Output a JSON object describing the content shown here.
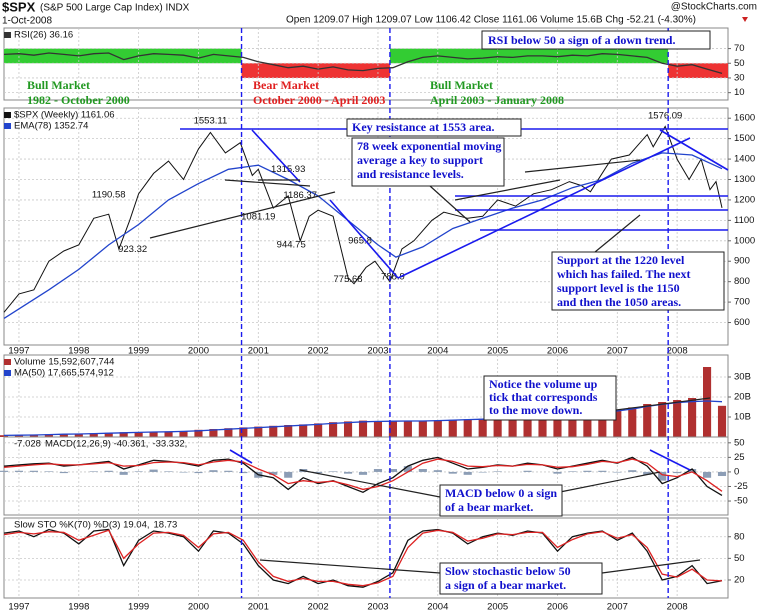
{
  "header": {
    "symbol": "$SPX",
    "name": "(S&P 500 Large Cap Index) INDX",
    "date": "1-Oct-2008",
    "quote": "Open 1209.07 High 1209.07 Low 1106.42 Close 1161.06 Volume 15.6B Chg -52.21 (-4.30%)",
    "copyright": "@StockCharts.com"
  },
  "annotations": {
    "bull1": [
      "Bull Market",
      "1982 - October 2000"
    ],
    "bear": [
      "Bear Market",
      "October 2000 - April 2003"
    ],
    "bull2": [
      "Bull Market",
      "April 2003 - January 2008"
    ],
    "rsi": [
      "RSI below 50 a sign of a down trend."
    ],
    "resistance": [
      "Key resistance at 1553 area."
    ],
    "ema": [
      "78 week exponential moving",
      "average a key to support",
      "and resistance levels."
    ],
    "support": [
      "Support at the 1220 level",
      "which has failed. The next",
      "support level is the 1150",
      "and then the 1050 areas."
    ],
    "volume": [
      "Notice the volume up",
      "tick that corresponds",
      "to the move down."
    ],
    "macd": [
      "MACD below 0 a sign",
      "of a bear market."
    ],
    "sto": [
      "Slow stochastic below 50",
      "a sign of a bear market."
    ]
  },
  "chart_data": [
    {
      "type": "line",
      "xlim": [
        1996.75,
        2008.85
      ],
      "ylim": [
        0,
        98
      ],
      "yticks": [
        70,
        50,
        30,
        10
      ],
      "grid": true,
      "band_colors": [
        "#33cc33",
        "#ee3333"
      ],
      "x": [
        1996.75,
        1997,
        1997.25,
        1997.5,
        1997.75,
        1998,
        1998.25,
        1998.5,
        1998.75,
        1999,
        1999.25,
        1999.5,
        1999.75,
        2000,
        2000.25,
        2000.5,
        2000.75,
        2001,
        2001.25,
        2001.5,
        2001.75,
        2002,
        2002.25,
        2002.5,
        2002.75,
        2003,
        2003.25,
        2003.5,
        2003.75,
        2004,
        2004.25,
        2004.5,
        2004.75,
        2005,
        2005.25,
        2005.5,
        2005.75,
        2006,
        2006.25,
        2006.5,
        2006.75,
        2007,
        2007.25,
        2007.5,
        2007.75,
        2008,
        2008.25,
        2008.5,
        2008.75
      ],
      "series": [
        {
          "name": "RSI(26) 36.16",
          "color": "#333333",
          "values": [
            62,
            63,
            61,
            64,
            62,
            60,
            63,
            64,
            55,
            60,
            63,
            62,
            61,
            57,
            62,
            60,
            58,
            52,
            48,
            44,
            46,
            42,
            45,
            41,
            40,
            43,
            44,
            52,
            58,
            60,
            58,
            56,
            57,
            59,
            58,
            60,
            60,
            59,
            61,
            60,
            63,
            62,
            60,
            58,
            50,
            46,
            48,
            42,
            36.16
          ]
        }
      ]
    },
    {
      "type": "line",
      "xlim": [
        1996.75,
        2008.85
      ],
      "ylim": [
        490,
        1650
      ],
      "yticks": [
        1600,
        1500,
        1400,
        1300,
        1200,
        1100,
        1000,
        900,
        800,
        700,
        600
      ],
      "xticks": [
        1997,
        1998,
        1999,
        2000,
        2001,
        2002,
        2003,
        2004,
        2005,
        2006,
        2007,
        2008
      ],
      "grid": true,
      "phase_dividers": [
        2000.72,
        2003.2,
        2007.85
      ],
      "price_labels": [
        {
          "x": 2000.2,
          "value": 1553.11
        },
        {
          "x": 2007.8,
          "value": 1576.09
        },
        {
          "x": 1998.5,
          "value": 1190.58
        },
        {
          "x": 1998.9,
          "value": 923.32
        },
        {
          "x": 2001.5,
          "value": 1315.93
        },
        {
          "x": 2001.7,
          "value": 1186.37
        },
        {
          "x": 2001.0,
          "value": 1081.19
        },
        {
          "x": 2001.55,
          "value": 944.75
        },
        {
          "x": 2002.7,
          "value": 965.8
        },
        {
          "x": 2002.5,
          "value": 775.68
        },
        {
          "x": 2003.25,
          "value": 788.9
        }
      ],
      "series": [
        {
          "name": "$SPX (Weekly) 1161.06",
          "color": "#111111",
          "x": [
            1996.75,
            1997.0,
            1997.25,
            1997.5,
            1997.75,
            1998.0,
            1998.25,
            1998.5,
            1998.67,
            1998.85,
            1999.0,
            1999.25,
            1999.5,
            1999.75,
            2000.0,
            2000.2,
            2000.45,
            2000.7,
            2000.9,
            2001.0,
            2001.25,
            2001.5,
            2001.7,
            2001.85,
            2002.0,
            2002.25,
            2002.5,
            2002.6,
            2002.8,
            2002.95,
            2003.2,
            2003.4,
            2003.6,
            2003.9,
            2004.1,
            2004.5,
            2004.75,
            2005.0,
            2005.3,
            2005.6,
            2005.9,
            2006.2,
            2006.4,
            2006.55,
            2006.9,
            2007.2,
            2007.5,
            2007.6,
            2007.8,
            2008.0,
            2008.2,
            2008.4,
            2008.55,
            2008.65,
            2008.75
          ],
          "values": [
            650,
            740,
            760,
            900,
            950,
            980,
            1110,
            1130,
            960,
            1100,
            1230,
            1330,
            1390,
            1300,
            1450,
            1530,
            1430,
            1480,
            1320,
            1350,
            1160,
            1220,
            1000,
            1120,
            1150,
            1120,
            820,
            790,
            870,
            900,
            800,
            960,
            1000,
            1100,
            1140,
            1110,
            1120,
            1200,
            1170,
            1230,
            1250,
            1290,
            1270,
            1240,
            1400,
            1420,
            1520,
            1460,
            1560,
            1400,
            1300,
            1400,
            1250,
            1290,
            1161.06
          ]
        },
        {
          "name": "EMA(78) 1352.74",
          "color": "#2244cc",
          "x": [
            1996.75,
            1997.5,
            1998,
            1998.5,
            1999,
            1999.5,
            2000,
            2000.5,
            2001,
            2001.5,
            2002,
            2002.5,
            2003,
            2003.3,
            2003.75,
            2004.25,
            2004.75,
            2005.25,
            2005.75,
            2006.25,
            2006.75,
            2007.25,
            2007.75,
            2008.25,
            2008.75
          ],
          "values": [
            620,
            760,
            860,
            980,
            1080,
            1200,
            1280,
            1350,
            1370,
            1300,
            1220,
            1100,
            980,
            920,
            970,
            1060,
            1110,
            1160,
            1200,
            1260,
            1300,
            1380,
            1430,
            1420,
            1352.74
          ]
        }
      ]
    },
    {
      "type": "bar",
      "xlim": [
        1996.75,
        2008.85
      ],
      "ylim": [
        0,
        41
      ],
      "yticks": [
        {
          "value": 30,
          "label": "30B"
        },
        {
          "value": 20,
          "label": "20B"
        },
        {
          "value": 10,
          "label": "10B"
        }
      ],
      "grid": true,
      "x": [
        1996.75,
        1997,
        1997.25,
        1997.5,
        1997.75,
        1998,
        1998.25,
        1998.5,
        1998.75,
        1999,
        1999.25,
        1999.5,
        1999.75,
        2000,
        2000.25,
        2000.5,
        2000.75,
        2001,
        2001.25,
        2001.5,
        2001.75,
        2002,
        2002.25,
        2002.5,
        2002.75,
        2003,
        2003.25,
        2003.5,
        2003.75,
        2004,
        2004.25,
        2004.5,
        2004.75,
        2005,
        2005.25,
        2005.5,
        2005.75,
        2006,
        2006.25,
        2006.5,
        2006.75,
        2007,
        2007.25,
        2007.5,
        2007.75,
        2008,
        2008.25,
        2008.5,
        2008.75
      ],
      "series": [
        {
          "name": "Volume 15,592,607,744",
          "color": "#b03030",
          "type": "bar",
          "values": [
            0.9,
            1.0,
            1.2,
            1.4,
            1.5,
            1.7,
            1.9,
            2.1,
            2.4,
            2.5,
            2.6,
            2.8,
            3.0,
            3.6,
            4.0,
            4.4,
            4.8,
            5.2,
            5.6,
            6.0,
            6.3,
            6.8,
            7.4,
            7.8,
            8.2,
            8.0,
            7.8,
            8.2,
            8.0,
            8.4,
            8.6,
            8.9,
            9.1,
            9.4,
            9.6,
            9.8,
            10.2,
            10.6,
            11.0,
            11.8,
            12.5,
            13.6,
            14.8,
            16.5,
            17.5,
            18.5,
            19.5,
            35,
            15.59
          ]
        },
        {
          "name": "MA(50) 17,665,574,912",
          "color": "#2244cc",
          "type": "line",
          "values": [
            0.8,
            0.9,
            1.0,
            1.2,
            1.4,
            1.5,
            1.7,
            1.9,
            2.1,
            2.3,
            2.5,
            2.6,
            2.8,
            3.1,
            3.5,
            3.9,
            4.3,
            4.7,
            5.1,
            5.5,
            5.9,
            6.3,
            6.8,
            7.2,
            7.6,
            7.8,
            7.9,
            8.0,
            8.0,
            8.2,
            8.4,
            8.7,
            8.9,
            9.2,
            9.4,
            9.6,
            9.9,
            10.3,
            10.7,
            11.3,
            12.0,
            13.0,
            14.0,
            15.3,
            16.3,
            17.2,
            17.7,
            18,
            17.67
          ]
        }
      ]
    },
    {
      "type": "line",
      "xlim": [
        1996.75,
        2008.85
      ],
      "ylim": [
        -74,
        60
      ],
      "yticks": [
        50,
        25,
        0,
        -25,
        -50
      ],
      "grid": true,
      "x": [
        1996.75,
        1997,
        1997.25,
        1997.5,
        1997.75,
        1998,
        1998.25,
        1998.5,
        1998.75,
        1999,
        1999.25,
        1999.5,
        1999.75,
        2000,
        2000.25,
        2000.5,
        2000.75,
        2001,
        2001.25,
        2001.5,
        2001.75,
        2002,
        2002.25,
        2002.5,
        2002.75,
        2003,
        2003.25,
        2003.5,
        2003.75,
        2004,
        2004.25,
        2004.5,
        2004.75,
        2005,
        2005.25,
        2005.5,
        2005.75,
        2006,
        2006.25,
        2006.5,
        2006.75,
        2007,
        2007.25,
        2007.5,
        2007.75,
        2008,
        2008.25,
        2008.5,
        2008.75
      ],
      "series": [
        {
          "name": "-7.028",
          "color": "#8c9db5",
          "type": "bar",
          "values": [
            2,
            2,
            2,
            1,
            -2,
            0,
            1,
            2,
            -5,
            1,
            4,
            1,
            -1,
            -2,
            3,
            2,
            -2,
            -10,
            -5,
            -10,
            5,
            -2,
            1,
            -3,
            -5,
            5,
            5,
            10,
            5,
            3,
            -3,
            -5,
            -1,
            1,
            0,
            2,
            0,
            -3,
            1,
            2,
            2,
            -1,
            3,
            -5,
            -15,
            -2,
            5,
            -10,
            -7.028
          ]
        },
        {
          "name": "MACD(12,26,9) -40.361,",
          "color": "#111111",
          "values": [
            10,
            12,
            14,
            15,
            10,
            12,
            15,
            18,
            5,
            12,
            20,
            18,
            15,
            10,
            20,
            22,
            15,
            -5,
            -10,
            -30,
            -10,
            -20,
            -15,
            -25,
            -35,
            -20,
            -10,
            10,
            20,
            25,
            15,
            5,
            8,
            12,
            10,
            15,
            12,
            5,
            10,
            15,
            20,
            15,
            25,
            10,
            -20,
            -10,
            5,
            -25,
            -40.361
          ]
        },
        {
          "name": "-33.332,",
          "color": "#dd2222",
          "values": [
            8,
            10,
            12,
            14,
            12,
            12,
            14,
            16,
            10,
            11,
            16,
            17,
            16,
            12,
            17,
            20,
            17,
            5,
            -5,
            -20,
            -15,
            -18,
            -16,
            -22,
            -30,
            -25,
            -15,
            0,
            15,
            22,
            18,
            10,
            9,
            11,
            10,
            13,
            12,
            8,
            9,
            13,
            18,
            16,
            22,
            15,
            -5,
            -8,
            0,
            -15,
            -33.332
          ]
        }
      ]
    },
    {
      "type": "line",
      "xlim": [
        1996.75,
        2008.85
      ],
      "ylim": [
        -5,
        106
      ],
      "yticks": [
        80,
        50,
        20
      ],
      "xticks": [
        1997,
        1998,
        1999,
        2000,
        2001,
        2002,
        2003,
        2004,
        2005,
        2006,
        2007,
        2008
      ],
      "grid": true,
      "x": [
        1996.75,
        1997,
        1997.25,
        1997.5,
        1997.75,
        1998,
        1998.25,
        1998.5,
        1998.75,
        1999,
        1999.25,
        1999.5,
        1999.75,
        2000,
        2000.25,
        2000.5,
        2000.75,
        2001,
        2001.25,
        2001.5,
        2001.75,
        2002,
        2002.25,
        2002.5,
        2002.75,
        2003,
        2003.25,
        2003.5,
        2003.75,
        2004,
        2004.25,
        2004.5,
        2004.75,
        2005,
        2005.25,
        2005.5,
        2005.75,
        2006,
        2006.25,
        2006.5,
        2006.75,
        2007,
        2007.25,
        2007.5,
        2007.75,
        2008,
        2008.25,
        2008.5,
        2008.75
      ],
      "series": [
        {
          "name": "Slow STO %K(70) %D(3) 19.04,",
          "color": "#111111",
          "values": [
            85,
            88,
            80,
            90,
            85,
            70,
            88,
            90,
            40,
            75,
            88,
            85,
            80,
            60,
            88,
            85,
            70,
            40,
            20,
            15,
            25,
            15,
            20,
            12,
            10,
            18,
            30,
            75,
            88,
            90,
            85,
            70,
            80,
            85,
            82,
            88,
            85,
            60,
            80,
            85,
            88,
            75,
            85,
            60,
            20,
            25,
            40,
            15,
            19.04
          ]
        },
        {
          "name": "18.73",
          "color": "#dd2222",
          "values": [
            83,
            86,
            84,
            87,
            86,
            75,
            82,
            89,
            50,
            70,
            85,
            86,
            82,
            65,
            84,
            86,
            75,
            45,
            25,
            18,
            22,
            18,
            18,
            14,
            12,
            16,
            25,
            65,
            85,
            89,
            86,
            74,
            78,
            84,
            83,
            86,
            86,
            65,
            76,
            84,
            87,
            78,
            83,
            65,
            28,
            24,
            35,
            20,
            18.73
          ]
        }
      ]
    }
  ]
}
